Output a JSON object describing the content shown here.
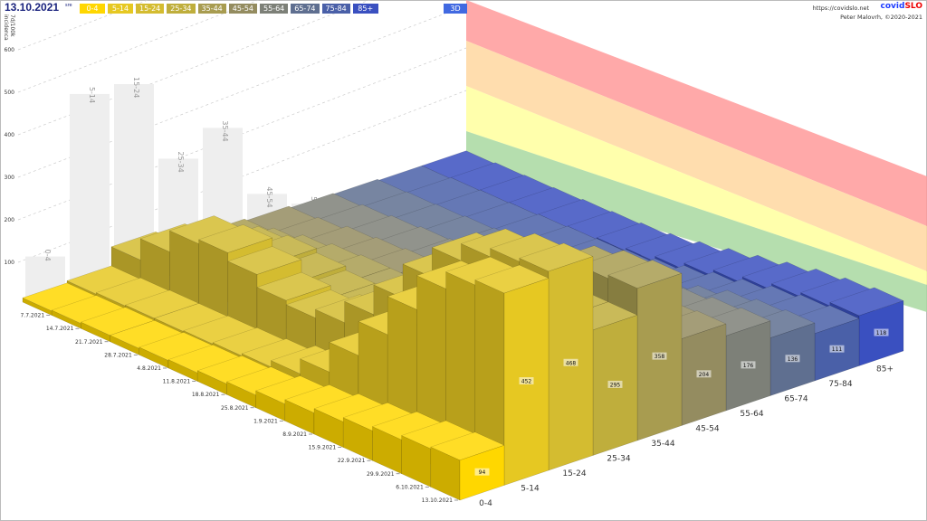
{
  "header": {
    "date": "13.10.2021",
    "day": "sre",
    "mode_button": "3D",
    "url": "https://covidslo.net",
    "brand_a": "covid",
    "brand_b": "SLO",
    "author": "Peter Malovrh, ©2020-2021"
  },
  "legend": [
    {
      "label": "0-4",
      "color": "#ffd700"
    },
    {
      "label": "5-14",
      "color": "#e6c822"
    },
    {
      "label": "15-24",
      "color": "#d4bc30"
    },
    {
      "label": "25-34",
      "color": "#bfae3c"
    },
    {
      "label": "35-44",
      "color": "#a89c50"
    },
    {
      "label": "45-54",
      "color": "#948c60"
    },
    {
      "label": "55-64",
      "color": "#7d8078"
    },
    {
      "label": "65-74",
      "color": "#5f6f90"
    },
    {
      "label": "75-84",
      "color": "#4a60a8"
    },
    {
      "label": "85+",
      "color": "#3a50c0"
    }
  ],
  "chart_data": {
    "type": "bar",
    "subtype": "3d",
    "ylabel": "7d/100k incidenca",
    "yticks": [
      100,
      200,
      300,
      400,
      500,
      600
    ],
    "ylim": [
      0,
      600
    ],
    "dates": [
      "7.7.2021",
      "14.7.2021",
      "21.7.2021",
      "28.7.2021",
      "4.8.2021",
      "11.8.2021",
      "18.8.2021",
      "25.8.2021",
      "1.9.2021",
      "8.9.2021",
      "15.9.2021",
      "22.9.2021",
      "29.9.2021",
      "6.10.2021",
      "13.10.2021"
    ],
    "categories": [
      "0-4",
      "5-14",
      "15-24",
      "25-34",
      "35-44",
      "45-54",
      "55-64",
      "65-74",
      "75-84",
      "85+"
    ],
    "series": [
      {
        "name": "0-4",
        "values": [
          10,
          12,
          15,
          15,
          18,
          20,
          25,
          30,
          40,
          50,
          60,
          70,
          80,
          90,
          94
        ]
      },
      {
        "name": "5-14",
        "values": [
          15,
          18,
          20,
          20,
          22,
          25,
          30,
          45,
          80,
          150,
          230,
          320,
          400,
          440,
          452
        ]
      },
      {
        "name": "15-24",
        "values": [
          60,
          110,
          160,
          170,
          150,
          120,
          110,
          130,
          180,
          250,
          330,
          400,
          440,
          460,
          468
        ]
      },
      {
        "name": "25-34",
        "values": [
          40,
          70,
          100,
          110,
          100,
          90,
          90,
          100,
          130,
          180,
          230,
          270,
          290,
          295,
          295
        ]
      },
      {
        "name": "35-44",
        "values": [
          20,
          30,
          45,
          55,
          60,
          60,
          65,
          80,
          110,
          160,
          220,
          280,
          330,
          350,
          358
        ]
      },
      {
        "name": "45-54",
        "values": [
          15,
          20,
          30,
          35,
          40,
          40,
          45,
          55,
          75,
          100,
          130,
          160,
          185,
          200,
          204
        ]
      },
      {
        "name": "55-64",
        "values": [
          10,
          15,
          20,
          25,
          28,
          30,
          35,
          45,
          60,
          85,
          110,
          140,
          160,
          170,
          176
        ]
      },
      {
        "name": "65-74",
        "values": [
          8,
          10,
          12,
          15,
          18,
          20,
          25,
          30,
          45,
          60,
          80,
          100,
          120,
          130,
          136
        ]
      },
      {
        "name": "75-84",
        "values": [
          5,
          8,
          10,
          12,
          15,
          18,
          20,
          25,
          35,
          50,
          65,
          80,
          95,
          105,
          111
        ]
      },
      {
        "name": "85+",
        "values": [
          5,
          8,
          10,
          12,
          15,
          18,
          22,
          28,
          40,
          55,
          70,
          85,
          100,
          110,
          118
        ]
      }
    ],
    "latest_labels": [
      "94",
      "452",
      "468",
      "295",
      "358",
      "204",
      "176",
      "136",
      "111",
      "118"
    ],
    "bands": [
      "#ff9a9a",
      "#ffd7a0",
      "#ffff9e",
      "#a8d8a0"
    ]
  }
}
